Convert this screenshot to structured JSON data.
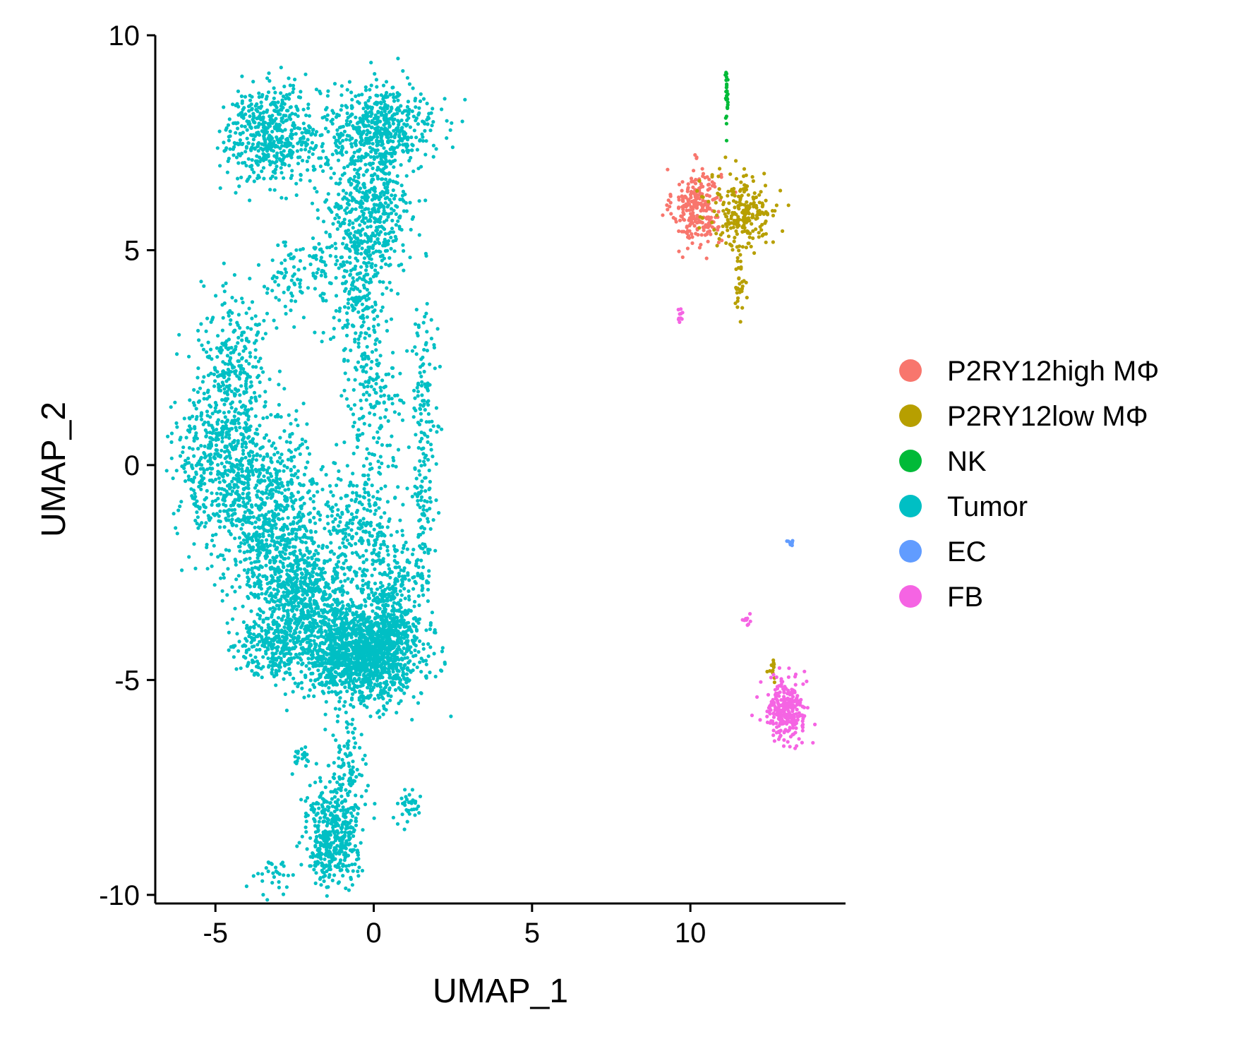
{
  "chart_data": {
    "type": "scatter",
    "title": "",
    "xlabel": "UMAP_1",
    "ylabel": "UMAP_2",
    "xlim": [
      -6.9,
      14.9
    ],
    "ylim": [
      -10.2,
      10.0
    ],
    "xticks": [
      "-5",
      "0",
      "5",
      "10"
    ],
    "xtick_values": [
      -5,
      0,
      5,
      10
    ],
    "yticks": [
      "10",
      "5",
      "0",
      "-5",
      "-10"
    ],
    "ytick_values": [
      10,
      5,
      0,
      -5,
      -10
    ],
    "grid": false,
    "legend_position": "right",
    "series": [
      {
        "name": "P2RY12high MΦ",
        "color": "#F8766D",
        "regions": [
          {
            "cx": 10.2,
            "cy": 6.0,
            "sx": 0.38,
            "sy": 0.45,
            "n": 260
          }
        ]
      },
      {
        "name": "P2RY12low MΦ",
        "color": "#B79F00",
        "regions": [
          {
            "cx": 11.7,
            "cy": 5.9,
            "sx": 0.55,
            "sy": 0.45,
            "n": 230
          },
          {
            "cx": 11.55,
            "cy": 4.3,
            "sx": 0.08,
            "sy": 0.45,
            "n": 35
          },
          {
            "cx": 12.6,
            "cy": -4.8,
            "sx": 0.06,
            "sy": 0.2,
            "n": 12
          }
        ]
      },
      {
        "name": "NK",
        "color": "#00BA38",
        "regions": [
          {
            "cx": 11.15,
            "cy": 8.6,
            "sx": 0.03,
            "sy": 0.32,
            "n": 30
          }
        ]
      },
      {
        "name": "Tumor",
        "color": "#00BFC4",
        "regions": [
          {
            "cx": -3.2,
            "cy": 7.7,
            "sx": 0.75,
            "sy": 0.55,
            "n": 520
          },
          {
            "cx": 0.2,
            "cy": 7.8,
            "sx": 0.85,
            "sy": 0.5,
            "n": 560
          },
          {
            "cx": -0.2,
            "cy": 5.8,
            "sx": 0.7,
            "sy": 0.8,
            "n": 430
          },
          {
            "cx": -0.5,
            "cy": 3.9,
            "sx": 0.45,
            "sy": 0.8,
            "n": 200
          },
          {
            "cx": 0.0,
            "cy": 1.5,
            "sx": 0.4,
            "sy": 0.9,
            "n": 160
          },
          {
            "cx": -4.4,
            "cy": 2.5,
            "sx": 0.55,
            "sy": 0.9,
            "n": 260
          },
          {
            "cx": -4.9,
            "cy": 0.2,
            "sx": 0.7,
            "sy": 0.9,
            "n": 480
          },
          {
            "cx": -3.2,
            "cy": -1.2,
            "sx": 0.9,
            "sy": 1.0,
            "n": 780
          },
          {
            "cx": -2.2,
            "cy": -3.0,
            "sx": 0.8,
            "sy": 0.7,
            "n": 620
          },
          {
            "cx": -0.4,
            "cy": -4.4,
            "sx": 0.9,
            "sy": 0.55,
            "n": 1500
          },
          {
            "cx": 0.6,
            "cy": -3.2,
            "sx": 0.45,
            "sy": 0.7,
            "n": 280
          },
          {
            "cx": -0.4,
            "cy": -1.5,
            "sx": 0.55,
            "sy": 0.7,
            "n": 220
          },
          {
            "cx": -3.2,
            "cy": -4.2,
            "sx": 0.6,
            "sy": 0.35,
            "n": 260
          },
          {
            "cx": -1.3,
            "cy": -8.6,
            "sx": 0.42,
            "sy": 0.55,
            "n": 440
          },
          {
            "cx": -0.8,
            "cy": -7.0,
            "sx": 0.25,
            "sy": 0.5,
            "n": 90
          },
          {
            "cx": 1.6,
            "cy": 1.4,
            "sx": 0.2,
            "sy": 1.4,
            "n": 120
          },
          {
            "cx": 1.5,
            "cy": -1.6,
            "sx": 0.22,
            "sy": 1.0,
            "n": 80
          },
          {
            "cx": -2.3,
            "cy": -6.8,
            "sx": 0.15,
            "sy": 0.12,
            "n": 20
          },
          {
            "cx": 1.1,
            "cy": -7.9,
            "sx": 0.25,
            "sy": 0.2,
            "n": 35
          },
          {
            "cx": -3.2,
            "cy": -9.6,
            "sx": 0.4,
            "sy": 0.2,
            "n": 30
          },
          {
            "cx": -2.6,
            "cy": 4.2,
            "sx": 0.35,
            "sy": 0.5,
            "n": 60
          },
          {
            "cx": -1.7,
            "cy": 4.7,
            "sx": 0.2,
            "sy": 0.7,
            "n": 40
          }
        ]
      },
      {
        "name": "EC",
        "color": "#619CFF",
        "regions": [
          {
            "cx": 13.15,
            "cy": -1.85,
            "sx": 0.06,
            "sy": 0.06,
            "n": 8
          }
        ]
      },
      {
        "name": "FB",
        "color": "#F564E3",
        "regions": [
          {
            "cx": 13.0,
            "cy": -5.7,
            "sx": 0.3,
            "sy": 0.35,
            "n": 280
          },
          {
            "cx": 11.8,
            "cy": -3.6,
            "sx": 0.1,
            "sy": 0.08,
            "n": 10
          },
          {
            "cx": 9.65,
            "cy": 3.55,
            "sx": 0.05,
            "sy": 0.12,
            "n": 10
          }
        ]
      }
    ]
  }
}
